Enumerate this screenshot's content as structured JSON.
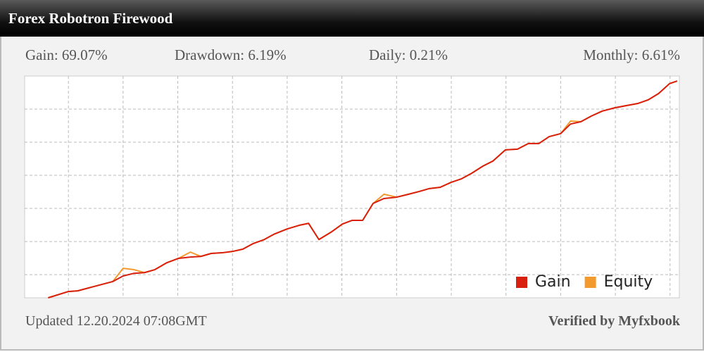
{
  "header": {
    "title": "Forex Robotron Firewood"
  },
  "stats": [
    "Gain: 69.07%",
    "Drawdown: 6.19%",
    "Daily: 0.21%",
    "Monthly: 6.61%"
  ],
  "chart_data": {
    "type": "line",
    "x": [
      -0.37,
      0,
      0.17,
      0.42,
      0.81,
      1.0,
      1.2,
      1.39,
      1.58,
      1.8,
      2.01,
      2.23,
      2.42,
      2.61,
      2.81,
      3.0,
      3.19,
      3.38,
      3.58,
      3.77,
      4.0,
      4.22,
      4.39,
      4.58,
      4.8,
      5.01,
      5.19,
      5.38,
      5.57,
      5.77,
      6.0,
      6.22,
      6.41,
      6.6,
      6.8,
      7.0,
      7.18,
      7.37,
      7.58,
      7.76,
      7.99,
      8.21,
      8.41,
      8.6,
      8.79,
      9.0,
      9.18,
      9.37,
      9.56,
      9.76,
      9.99,
      10.21,
      10.41,
      10.6,
      10.79,
      10.99,
      11.13
    ],
    "series": [
      {
        "name": "Gain",
        "color": "#d9200f",
        "values": [
          3.0,
          4.9,
          5.1,
          6.2,
          7.9,
          9.6,
          10.4,
          10.6,
          11.5,
          13.6,
          14.9,
          15.3,
          15.5,
          16.4,
          16.6,
          17.0,
          17.7,
          19.4,
          20.6,
          22.3,
          23.8,
          24.9,
          25.5,
          20.6,
          22.8,
          25.3,
          26.4,
          26.4,
          31.5,
          33.0,
          33.4,
          34.3,
          35.1,
          36.0,
          36.4,
          37.9,
          38.9,
          40.6,
          42.8,
          44.3,
          47.7,
          47.9,
          49.6,
          49.6,
          51.7,
          52.6,
          55.5,
          56.2,
          57.9,
          59.4,
          60.4,
          61.1,
          61.7,
          62.8,
          64.7,
          67.7,
          68.5
        ]
      },
      {
        "name": "Equity",
        "color": "#f29a2e",
        "values": [
          3.0,
          4.9,
          5.1,
          6.2,
          7.9,
          11.9,
          11.5,
          10.6,
          11.5,
          13.6,
          14.9,
          16.8,
          15.5,
          16.4,
          16.6,
          17.0,
          17.7,
          19.4,
          20.6,
          22.3,
          23.8,
          24.9,
          25.5,
          20.6,
          22.8,
          25.3,
          26.4,
          26.4,
          31.5,
          34.3,
          33.4,
          34.3,
          35.1,
          36.0,
          36.4,
          37.9,
          38.9,
          40.6,
          42.8,
          44.3,
          47.7,
          47.9,
          49.6,
          49.6,
          51.7,
          52.6,
          56.4,
          56.2,
          57.9,
          59.4,
          60.4,
          61.1,
          61.7,
          62.8,
          64.7,
          67.7,
          68.5
        ]
      }
    ],
    "xlim": [
      -0.8,
      11.17
    ],
    "ylim": [
      3,
      70
    ],
    "xticks": [
      0,
      1,
      2,
      3,
      4,
      5,
      6,
      7,
      8,
      9,
      10,
      11
    ],
    "yticks": [
      10,
      20,
      30,
      40,
      50,
      60
    ],
    "grid": true,
    "legend": "lower right"
  },
  "footer": {
    "updated": "Updated 12.20.2024 07:08GMT",
    "verified": "Verified by Myfxbook"
  }
}
